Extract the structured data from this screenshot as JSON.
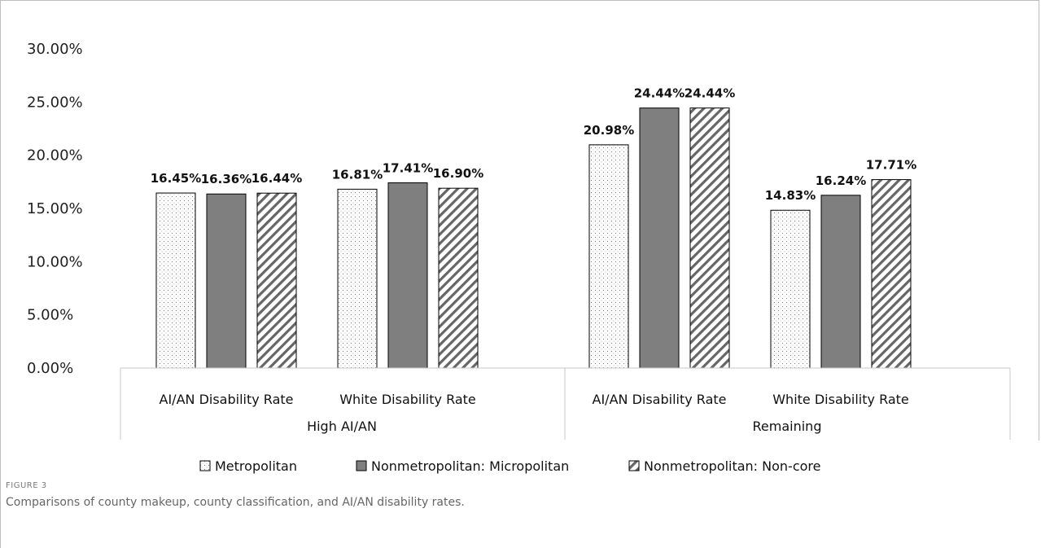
{
  "figure": {
    "label": "FIGURE 3",
    "caption": "Comparisons of county makeup, county classification, and AI/AN disability rates."
  },
  "chart_data": {
    "type": "bar",
    "ylim": [
      0,
      0.3
    ],
    "y_ticks": [
      "0.00%",
      "5.00%",
      "10.00%",
      "15.00%",
      "20.00%",
      "25.00%",
      "30.00%"
    ],
    "y_tick_values": [
      0,
      0.05,
      0.1,
      0.15,
      0.2,
      0.25,
      0.3
    ],
    "grid": false,
    "legend_position": "bottom",
    "groups": [
      {
        "name": "High AI/AN",
        "categories": [
          "AI/AN Disability Rate",
          "White Disability Rate"
        ]
      },
      {
        "name": "Remaining",
        "categories": [
          "AI/AN Disability Rate",
          "White Disability Rate"
        ]
      }
    ],
    "series": [
      {
        "name": "Metropolitan",
        "pattern": "dots",
        "color": "#ffffff",
        "values": [
          0.1645,
          0.1681,
          0.2098,
          0.1483
        ],
        "labels": [
          "16.45%",
          "16.81%",
          "20.98%",
          "14.83%"
        ]
      },
      {
        "name": "Nonmetropolitan: Micropolitan",
        "pattern": "solid",
        "color": "#7f7f7f",
        "values": [
          0.1636,
          0.1741,
          0.2444,
          0.1624
        ],
        "labels": [
          "16.36%",
          "17.41%",
          "24.44%",
          "16.24%"
        ]
      },
      {
        "name": "Nonmetropolitan: Non-core",
        "pattern": "diagonal",
        "color": "#ffffff",
        "values": [
          0.1644,
          0.169,
          0.2444,
          0.1771
        ],
        "labels": [
          "16.44%",
          "16.90%",
          "24.44%",
          "17.71%"
        ]
      }
    ]
  }
}
